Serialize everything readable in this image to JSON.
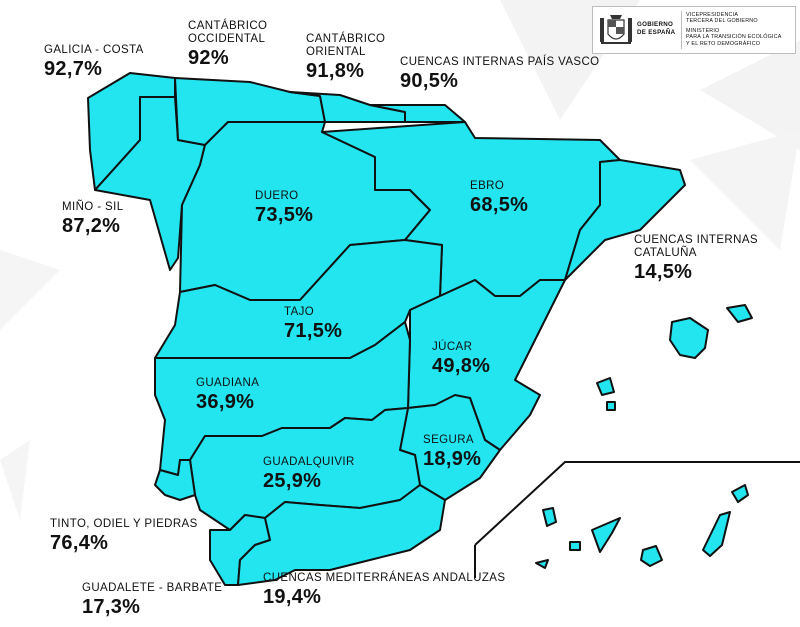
{
  "colors": {
    "region_fill": "#22e5f0",
    "region_stroke": "#111111",
    "background_shapes": "#f1f1f1"
  },
  "logo": {
    "government": [
      "GOBIERNO",
      "DE ESPAÑA"
    ],
    "vicepresidency": [
      "VICEPRESIDENCIA",
      "TERCERA DEL GOBIERNO"
    ],
    "ministry": [
      "MINISTERIO",
      "PARA LA TRANSICIÓN ECOLÓGICA",
      "Y EL RETO DEMOGRÁFICO"
    ]
  },
  "basins": [
    {
      "name": "GALICIA - COSTA",
      "value": "92,7%"
    },
    {
      "name": "CANTÁBRICO\nOCCIDENTAL",
      "value": "92%"
    },
    {
      "name": "CANTÁBRICO\nORIENTAL",
      "value": "91,8%"
    },
    {
      "name": "CUENCAS INTERNAS PAÍS VASCO",
      "value": "90,5%"
    },
    {
      "name": "MIÑO - SIL",
      "value": "87,2%"
    },
    {
      "name": "DUERO",
      "value": "73,5%"
    },
    {
      "name": "EBRO",
      "value": "68,5%"
    },
    {
      "name": "CUENCAS INTERNAS\nCATALUÑA",
      "value": "14,5%"
    },
    {
      "name": "TAJO",
      "value": "71,5%"
    },
    {
      "name": "JÚCAR",
      "value": "49,8%"
    },
    {
      "name": "GUADIANA",
      "value": "36,9%"
    },
    {
      "name": "SEGURA",
      "value": "18,9%"
    },
    {
      "name": "GUADALQUIVIR",
      "value": "25,9%"
    },
    {
      "name": "TINTO, ODIEL Y PIEDRAS",
      "value": "76,4%"
    },
    {
      "name": "GUADALETE - BARBATE",
      "value": "17,3%"
    },
    {
      "name": "CUENCAS MEDITERRÁNEAS ANDALUZAS",
      "value": "19,4%"
    }
  ]
}
